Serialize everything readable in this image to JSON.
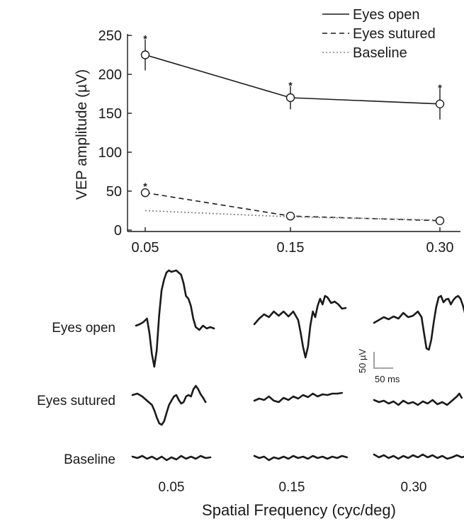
{
  "chart_data": {
    "type": "line",
    "title": "",
    "xlabel": "Spatial Frequency (cyc/deg)",
    "ylabel": "VEP amplitude (µV)",
    "categories": [
      "0.05",
      "0.15",
      "0.30"
    ],
    "ylim": [
      0,
      250
    ],
    "yticks": [
      "0",
      "50",
      "100",
      "150",
      "200",
      "250"
    ],
    "grid": false,
    "legend_position": "top-right",
    "series": [
      {
        "name": "Eyes open",
        "style": "solid",
        "values": [
          225,
          170,
          162
        ],
        "error": [
          20,
          15,
          20
        ],
        "significant": [
          true,
          true,
          true
        ],
        "marker": "open-circle"
      },
      {
        "name": "Eyes sutured",
        "style": "dashed",
        "values": [
          48,
          18,
          12
        ],
        "error": [
          0,
          0,
          0
        ],
        "significant": [
          true,
          false,
          false
        ],
        "marker": "open-circle"
      },
      {
        "name": "Baseline",
        "style": "dotted",
        "values": [
          25,
          17,
          13
        ],
        "error": [
          0,
          0,
          0
        ],
        "significant": [
          false,
          false,
          false
        ],
        "marker": "none"
      }
    ],
    "significance_mark": "*",
    "color": "#1a1a1a",
    "baseline_color": "#888888",
    "traces": {
      "row_labels": [
        "Eyes open",
        "Eyes sutured",
        "Baseline"
      ],
      "column_labels": [
        "0.05",
        "0.15",
        "0.30"
      ],
      "scale_bar": {
        "amplitude_label": "50 µV",
        "time_label": "50 ms",
        "amplitude_uV": 50,
        "time_ms": 50
      }
    }
  }
}
